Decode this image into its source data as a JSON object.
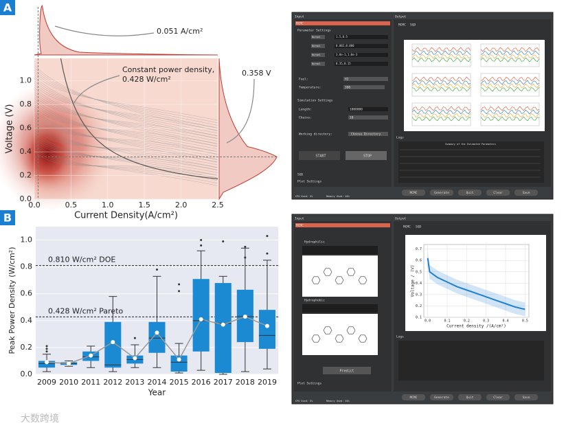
{
  "panel_labels": [
    "A",
    "B"
  ],
  "watermark": "大数跨境",
  "chart_data": [
    {
      "type": "density",
      "xlabel": "Current Density(A/cm²)",
      "ylabel": "Voltage (V)",
      "xlim": [
        0,
        2.5
      ],
      "xticks": [
        {
          "value": 0,
          "label": "0.0"
        },
        0.5,
        {
          "value": 1,
          "label": "1.0"
        },
        1.5,
        {
          "value": 2,
          "label": "2.0"
        },
        2.5
      ],
      "ylim": [
        0,
        1.19
      ],
      "yticks": [
        {
          "value": 0,
          "label": "0.0"
        },
        0.2,
        0.4,
        0.6,
        0.8,
        {
          "value": 1,
          "label": "1.0"
        }
      ],
      "peak_current": 0.051,
      "peak_voltage": 0.358,
      "constant_power": 0.428,
      "annotations": [
        "0.051 A/cm²",
        "Constant power density,",
        "0.428 W/cm²",
        "0.358 V"
      ],
      "color": "#c0392b"
    },
    {
      "type": "box",
      "ylabel": "Peak Power Density (W/cm²)",
      "xlabel": "Year",
      "categories": [
        "2009",
        "2010",
        "2011",
        "2012",
        "2013",
        "2014",
        "2015",
        "2016",
        "2017",
        "2018",
        "2019"
      ],
      "boxes": [
        {
          "low": 0.02,
          "q1": 0.05,
          "median": 0.08,
          "q3": 0.1,
          "high": 0.15,
          "mean": 0.09,
          "outliers": [
            0.17,
            0.19,
            0.21
          ]
        },
        {
          "low": 0.06,
          "q1": 0.07,
          "median": 0.08,
          "q3": 0.09,
          "high": 0.1,
          "mean": 0.08,
          "outliers": []
        },
        {
          "low": 0.05,
          "q1": 0.1,
          "median": 0.13,
          "q3": 0.17,
          "high": 0.21,
          "mean": 0.14,
          "outliers": []
        },
        {
          "low": 0.02,
          "q1": 0.05,
          "median": 0.07,
          "q3": 0.39,
          "high": 0.58,
          "mean": 0.24,
          "outliers": []
        },
        {
          "low": 0.05,
          "q1": 0.08,
          "median": 0.11,
          "q3": 0.14,
          "high": 0.22,
          "mean": 0.12,
          "outliers": [
            0.27
          ]
        },
        {
          "low": 0.05,
          "q1": 0.16,
          "median": 0.27,
          "q3": 0.39,
          "high": 0.73,
          "mean": 0.31,
          "outliers": [
            0.78
          ]
        },
        {
          "low": 0.01,
          "q1": 0.02,
          "median": 0.09,
          "q3": 0.14,
          "high": 0.23,
          "mean": 0.11,
          "outliers": [
            0.62,
            0.67
          ]
        },
        {
          "low": 0.03,
          "q1": 0.17,
          "median": 0.4,
          "q3": 0.71,
          "high": 0.92,
          "mean": 0.41,
          "outliers": [
            0.96,
            1.0
          ]
        },
        {
          "low": 0.0,
          "q1": 0.01,
          "median": 0.38,
          "q3": 0.68,
          "high": 0.73,
          "mean": 0.37,
          "outliers": [
            0.99
          ]
        },
        {
          "low": 0.02,
          "q1": 0.24,
          "median": 0.43,
          "q3": 0.63,
          "high": 0.94,
          "mean": 0.43,
          "outliers": [
            0.87,
            0.95
          ]
        },
        {
          "low": 0.04,
          "q1": 0.19,
          "median": 0.29,
          "q3": 0.48,
          "high": 0.85,
          "mean": 0.36,
          "outliers": [
            0.9,
            1.03
          ]
        }
      ],
      "ylim": [
        0,
        1.1
      ],
      "yticks": [
        {
          "value": 0,
          "label": "0.0"
        },
        0.2,
        0.4,
        0.6,
        0.8,
        {
          "value": 1,
          "label": "1.0"
        }
      ],
      "reference_lines": [
        {
          "value": 0.81,
          "label": "0.810 W/cm² DOE"
        },
        {
          "value": 0.428,
          "label": "0.428 W/cm² Pareto"
        }
      ],
      "color": "#1b8ad3",
      "mean_color": "#999999",
      "grid": true
    },
    {
      "type": "line",
      "xlabel": "Current density /(A/cm²)",
      "ylabel": "Voltage / (V)",
      "x": [
        0,
        0.01,
        0.05,
        0.1,
        0.15,
        0.2,
        0.25,
        0.3,
        0.35,
        0.4,
        0.45,
        0.5
      ],
      "values": [
        0.62,
        0.5,
        0.45,
        0.41,
        0.37,
        0.34,
        0.31,
        0.28,
        0.25,
        0.22,
        0.19,
        0.17
      ],
      "xlim": [
        -0.02,
        0.52
      ],
      "xticks": [
        {
          "value": 0,
          "label": "0.0"
        },
        0.1,
        0.2,
        0.3,
        0.4,
        0.5
      ],
      "ylim": [
        0.1,
        0.74
      ],
      "yticks": [
        0.1,
        0.2,
        0.3,
        0.4,
        0.5,
        0.6,
        0.7
      ],
      "color": "#1f7fd0",
      "grid": true
    }
  ],
  "ui_screens": [
    {
      "texts": [
        "Input",
        "Output",
        "MCMC",
        "SGD",
        "Parameter Settings",
        "Normal",
        "1.5,0.5",
        "0.002,0.000",
        "3.0e-1,1.0e-3",
        "0.35,0.15",
        "Fuel:",
        "H2",
        "Temperature:",
        "300",
        "Simulation Settings",
        "Length:",
        "1000000",
        "Chains:",
        "10",
        "Working directory:",
        "Choose Directory",
        "START",
        "STOP",
        "Logs",
        "Summary of the Estimated Parameters",
        "Plot Settings",
        "CPU Used: 5%",
        "Memory Used: 40%"
      ],
      "buttons": [
        "MCMC",
        "Generate",
        "Quit",
        "Clear",
        "Save"
      ]
    },
    {
      "texts": [
        "Input",
        "Output",
        "MCMC",
        "SGD",
        "Hydrophilic",
        "Hydrophobic",
        "Predict",
        "Plot Settings",
        "Logs",
        "CPU Used: 5%",
        "Memory Used: 40%"
      ],
      "buttons": [
        "MCMC",
        "Generate",
        "Quit",
        "Clear",
        "Save"
      ]
    }
  ]
}
